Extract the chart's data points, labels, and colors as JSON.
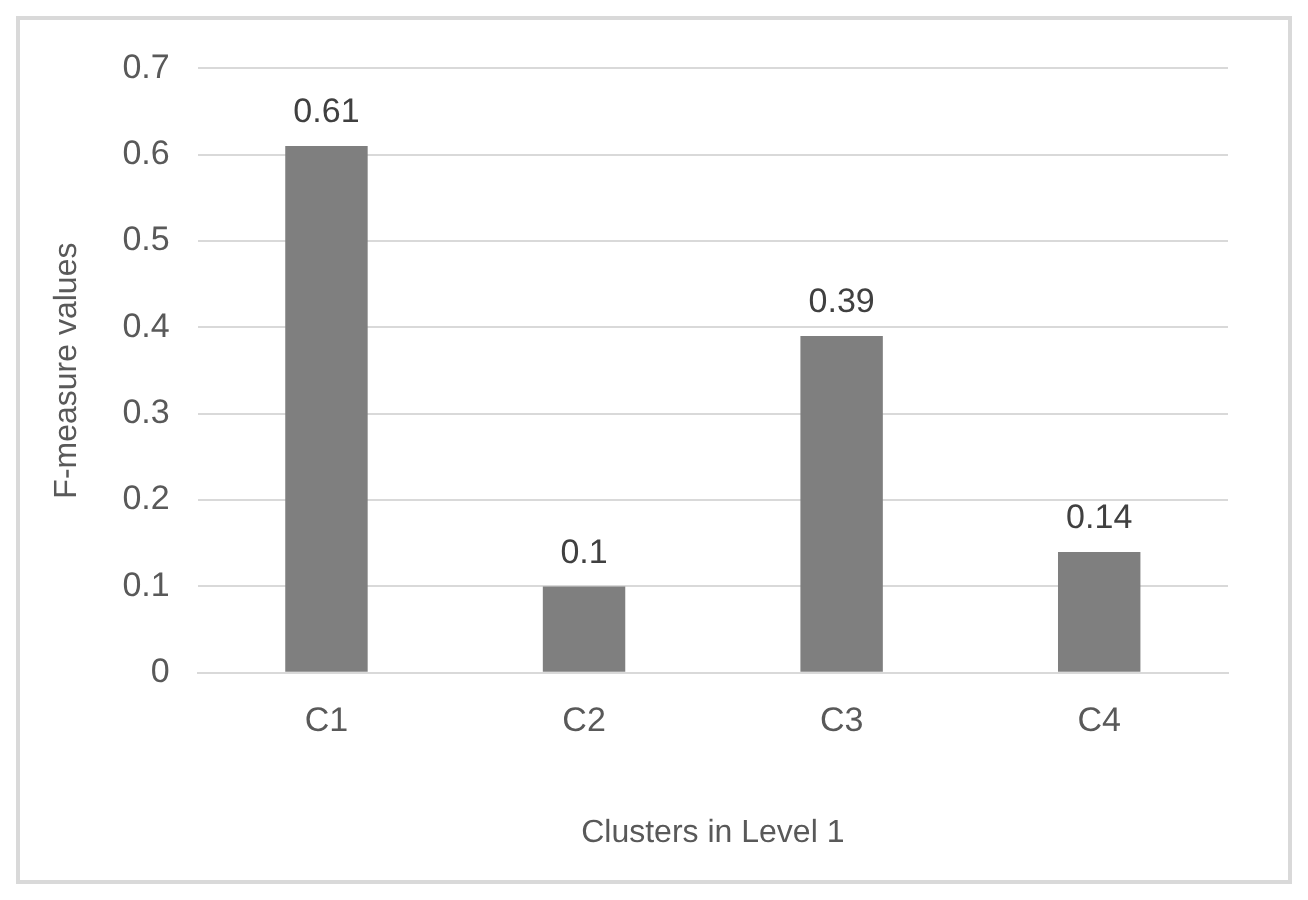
{
  "chart_data": {
    "type": "bar",
    "xlabel": "Clusters in Level 1",
    "ylabel": "F-measure values",
    "categories": [
      "C1",
      "C2",
      "C3",
      "C4"
    ],
    "values": [
      0.61,
      0.1,
      0.39,
      0.14
    ],
    "color": "#7f7f7f",
    "ylim": [
      0,
      0.7
    ],
    "yticks": [
      0,
      0.1,
      0.2,
      0.3,
      0.4,
      0.5,
      0.6,
      0.7
    ],
    "grid": "y",
    "data_labels": true,
    "legend": false
  }
}
